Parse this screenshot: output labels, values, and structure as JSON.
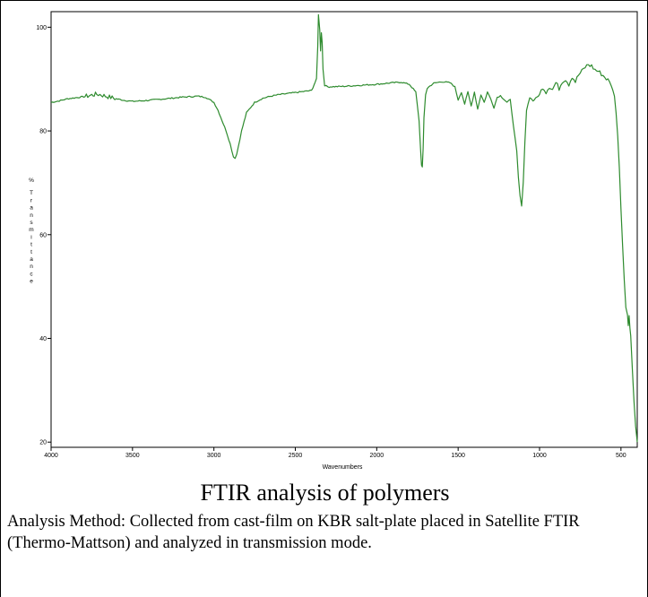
{
  "caption": "FTIR analysis of polymers",
  "method_text": "Analysis Method: Collected from cast-film on KBR salt-plate placed in Satellite FTIR (Thermo-Mattson) and analyzed in transmission mode.",
  "chart_data": {
    "type": "line",
    "title": "",
    "xlabel": "Wavenumbers",
    "ylabel_letters": [
      "%",
      "T",
      "r",
      "a",
      "n",
      "s",
      "m",
      "i",
      "t",
      "t",
      "a",
      "n",
      "c",
      "e"
    ],
    "xlim": [
      4000,
      400
    ],
    "ylim": [
      19,
      103
    ],
    "x_ticks": [
      4000,
      3500,
      3000,
      2500,
      2000,
      1500,
      1000,
      500
    ],
    "y_ticks": [
      100,
      80,
      60,
      40,
      20
    ],
    "grid": false,
    "line_color": "#2e8b2e",
    "series": [
      {
        "x": [
          4000,
          3950,
          3900,
          3850,
          3800,
          3750,
          3720,
          3700,
          3650,
          3600,
          3550,
          3500,
          3400,
          3300,
          3200,
          3100,
          3050,
          3000,
          2975,
          2950,
          2925,
          2900,
          2880,
          2870,
          2860,
          2850,
          2830,
          2800,
          2750,
          2700,
          2650,
          2600,
          2500,
          2400,
          2370,
          2362,
          2358,
          2350,
          2345,
          2340,
          2335,
          2330,
          2320,
          2300,
          2200,
          2100,
          2000,
          1900,
          1850,
          1800,
          1760,
          1740,
          1730,
          1725,
          1720,
          1715,
          1710,
          1700,
          1690,
          1680,
          1650,
          1600,
          1550,
          1520,
          1500,
          1480,
          1460,
          1440,
          1420,
          1400,
          1380,
          1360,
          1340,
          1320,
          1300,
          1280,
          1260,
          1240,
          1200,
          1180,
          1160,
          1140,
          1130,
          1120,
          1110,
          1100,
          1090,
          1080,
          1060,
          1040,
          1000,
          980,
          960,
          940,
          920,
          900,
          880,
          860,
          840,
          820,
          800,
          780,
          760,
          740,
          720,
          700,
          680,
          660,
          640,
          620,
          600,
          580,
          560,
          540,
          530,
          520,
          510,
          500,
          490,
          480,
          470,
          460,
          455,
          450,
          445,
          440,
          430,
          420,
          410,
          400
        ],
        "y": [
          85.5,
          85.8,
          86.2,
          86.4,
          86.6,
          86.9,
          87.1,
          87.0,
          86.6,
          86.2,
          85.9,
          85.7,
          85.9,
          86.2,
          86.5,
          86.7,
          86.5,
          85.5,
          84.0,
          82.0,
          80.0,
          77.5,
          75.0,
          74.8,
          75.5,
          77.0,
          80.0,
          83.5,
          85.5,
          86.3,
          86.7,
          87.0,
          87.4,
          87.8,
          90.0,
          96.5,
          102.5,
          99.5,
          95.5,
          99.0,
          97.0,
          92.0,
          88.8,
          88.5,
          88.6,
          88.8,
          89.0,
          89.3,
          89.4,
          89.0,
          87.5,
          82.0,
          76.0,
          73.5,
          73.0,
          76.5,
          82.5,
          87.0,
          88.2,
          88.5,
          89.2,
          89.5,
          89.3,
          88.5,
          86.0,
          87.5,
          85.2,
          87.5,
          84.8,
          87.5,
          84.2,
          87.0,
          85.5,
          87.5,
          86.2,
          84.5,
          86.5,
          86.8,
          85.5,
          86.0,
          81.0,
          76.0,
          71.0,
          67.5,
          65.5,
          70.0,
          78.0,
          84.0,
          86.5,
          85.8,
          87.0,
          88.5,
          87.5,
          88.6,
          88.0,
          89.3,
          88.2,
          89.6,
          90.0,
          89.0,
          90.5,
          89.5,
          90.8,
          91.5,
          92.3,
          92.8,
          92.5,
          91.8,
          91.5,
          91.0,
          90.4,
          89.8,
          88.8,
          86.8,
          83.5,
          79.0,
          73.0,
          65.0,
          58.0,
          51.5,
          46.0,
          44.5,
          42.5,
          44.5,
          42.0,
          40.5,
          34.0,
          28.0,
          23.0,
          20.0
        ]
      }
    ]
  }
}
